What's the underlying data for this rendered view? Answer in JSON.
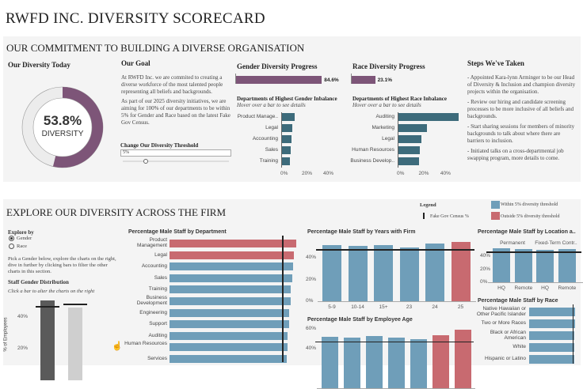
{
  "title": "RWFD INC. DIVERSITY SCORECARD",
  "colors": {
    "purple": "#7d5578",
    "teal": "#3d6b7b",
    "within": "#6f9eb9",
    "outside": "#c86a70",
    "census": "#222222"
  },
  "commitment": {
    "heading": "OUR COMMITMENT TO BUILDING A DIVERSE ORGANISATION",
    "today": {
      "title": "Our Diversity Today",
      "value": "53.8%",
      "fraction": 0.538,
      "label": "DIVERSITY"
    },
    "goal": {
      "title": "Our Goal",
      "p1": "At RWFD Inc. we are commited to creating a diverse workforce of the most talented people representing all beliefs and backgrounds.",
      "p2": "As part of our 2025 diversity initiatives, we are aiming for 100% of our departments to be within 5% for Gender and Race based on the latest Fake Gov Census.",
      "threshold_label": "Change Our Diversity Threshold",
      "threshold_value": "5%",
      "slider_fraction": 0.2
    },
    "gender": {
      "title": "Gender Diversity Progress",
      "progress": 84.6,
      "progress_label": "84.6%",
      "dept_title": "Departments of Highest Gender Inbalance",
      "hint": "Hover over a bar to see details",
      "depts": [
        {
          "name": "Product Manage..",
          "value": 12
        },
        {
          "name": "Legal",
          "value": 9.5
        },
        {
          "name": "Accounting",
          "value": 9.2
        },
        {
          "name": "Sales",
          "value": 8.5
        },
        {
          "name": "Training",
          "value": 7.5
        }
      ],
      "ticks": [
        "0%",
        "20%",
        "40%"
      ]
    },
    "race": {
      "title": "Race Diversity Progress",
      "progress": 23.1,
      "progress_label": "23.1%",
      "dept_title": "Departments of Highest Race Inbalance",
      "hint": "Hover over a bar to see details",
      "depts": [
        {
          "name": "Auditing",
          "value": 54
        },
        {
          "name": "Marketing",
          "value": 26
        },
        {
          "name": "Legal",
          "value": 21
        },
        {
          "name": "Human Resources",
          "value": 19.5
        },
        {
          "name": "Business Develop..",
          "value": 18.5
        }
      ],
      "ticks": [
        "0%",
        "20%",
        "40%"
      ]
    },
    "steps": {
      "title": "Steps We've Taken",
      "items": [
        "- Appointed Kara-lynn Arminger to be our Head of Diversity & Inclusion and champion diversity projects within the organisation.",
        "- Review our hiring and candidate screening processes to be more inclusive of all beliefs and backgrounds.",
        "- Start sharing sessions for members of minority backgrounds to talk about where there are barriers to inclusion.",
        "- Initiated talks on a cross-departmental job swapping program, more details to come."
      ]
    }
  },
  "explore": {
    "heading": "EXPLORE OUR DIVERSITY ACROSS THE FIRM",
    "explore_by": "Explore by",
    "options": [
      {
        "label": "Gender",
        "selected": true
      },
      {
        "label": "Race",
        "selected": false
      }
    ],
    "instructions": "Pick a Gender below, explore the charts on the right, dive in further by clicking bars to filter the other charts in this section.",
    "dist_title": "Staff Gender Distribution",
    "dist_hint": "Click a bar to alter the charts on the right",
    "legend": {
      "title": "Legend",
      "census": "Fake Gov Census %",
      "within": "Within 5% diversity threshold",
      "outside": "Outside 5% diversity threshold"
    }
  },
  "chart_data": [
    {
      "type": "bar",
      "title": "Staff Gender Distribution",
      "ylabel": "% of Employees",
      "yticks": [
        "20%",
        "40%"
      ],
      "values": [
        50.5,
        46
      ],
      "census": [
        47,
        48.5
      ],
      "colors": [
        "#5a5a5a",
        "#cfcfcf"
      ]
    },
    {
      "type": "bar",
      "orientation": "horizontal",
      "title": "Percentage Male Staff by Department",
      "census": 49,
      "categories": [
        "Product Management",
        "Legal",
        "Accounting",
        "Sales",
        "Training",
        "Business Development",
        "Engineering",
        "Support",
        "Auditing",
        "Human Resources",
        "Services"
      ],
      "values": [
        55,
        54,
        53.8,
        53.4,
        52.8,
        52.8,
        52,
        52,
        51.4,
        51.4,
        51
      ],
      "outside": [
        true,
        true,
        false,
        false,
        false,
        false,
        false,
        false,
        false,
        false,
        false
      ]
    },
    {
      "type": "bar",
      "title": "Percentage Male Staff by Years with Firm",
      "categories": [
        "5-9",
        "10-14",
        "15+",
        "23",
        "24",
        "25"
      ],
      "values": [
        51.6,
        51,
        51.6,
        49.5,
        53,
        54.5
      ],
      "outside": [
        false,
        false,
        false,
        false,
        false,
        true
      ],
      "census": 48,
      "yticks": [
        "0%",
        "20%",
        "40%"
      ]
    },
    {
      "type": "bar",
      "title": "Percentage Male Staff by Employee Age",
      "values": [
        52,
        51,
        53,
        51,
        49.5,
        53.6,
        59
      ],
      "outside": [
        false,
        false,
        false,
        false,
        false,
        true,
        true
      ],
      "census": 47.5,
      "yticks": [
        "40%",
        "60%"
      ]
    },
    {
      "type": "bar",
      "title": "Percentage Male Staff by Location a..",
      "groups": [
        "Permanent",
        "Fixed-Term Contr.."
      ],
      "categories": [
        "HQ",
        "Remote",
        "HQ",
        "Remote"
      ],
      "values": [
        52,
        51,
        50,
        51
      ],
      "census": 47,
      "yticks": [
        "0%",
        "20%",
        "40%"
      ]
    },
    {
      "type": "bar",
      "orientation": "horizontal",
      "title": "Percentage Male Staff by Race",
      "categories": [
        "Native Hawaiian or Other Pacific Islander",
        "Two or More Races",
        "Black or African American",
        "White",
        "Hispanic or Latino"
      ],
      "values": [
        55,
        55,
        54.5,
        54,
        54
      ],
      "census": 52
    }
  ]
}
